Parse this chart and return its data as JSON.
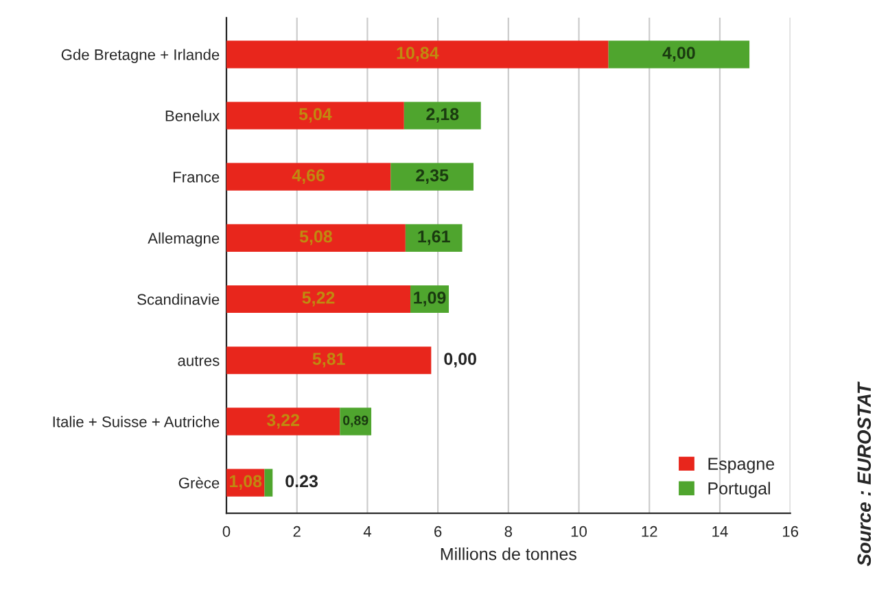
{
  "chart_data": {
    "type": "bar",
    "orientation": "horizontal",
    "stacked": true,
    "xlabel": "Millions de tonnes",
    "categories": [
      "Gde Bretagne + Irlande",
      "Benelux",
      "France",
      "Allemagne",
      "Scandinavie",
      "autres",
      "Italie + Suisse + Autriche",
      "Grèce"
    ],
    "series": [
      {
        "name": "Espagne",
        "color": "#e8261c",
        "values": [
          10.84,
          5.04,
          4.66,
          5.08,
          5.22,
          5.81,
          3.22,
          1.08
        ],
        "value_labels": [
          "10,84",
          "5,04",
          "4,66",
          "5,08",
          "5,22",
          "5,81",
          "3,22",
          "1,08"
        ]
      },
      {
        "name": "Portugal",
        "color": "#4fa52e",
        "values": [
          4.0,
          2.18,
          2.35,
          1.61,
          1.09,
          0.0,
          0.89,
          0.23
        ],
        "value_labels": [
          "4,00",
          "2,18",
          "2,35",
          "1,61",
          "1,09",
          "0,00",
          "0,89",
          "0.23"
        ]
      }
    ],
    "xlim": [
      0,
      16
    ],
    "xticks": [
      0,
      2,
      4,
      6,
      8,
      10,
      12,
      14,
      16
    ],
    "grid": "x",
    "legend": "bottom right",
    "annotations": [
      "Source : EUROSTAT"
    ]
  }
}
